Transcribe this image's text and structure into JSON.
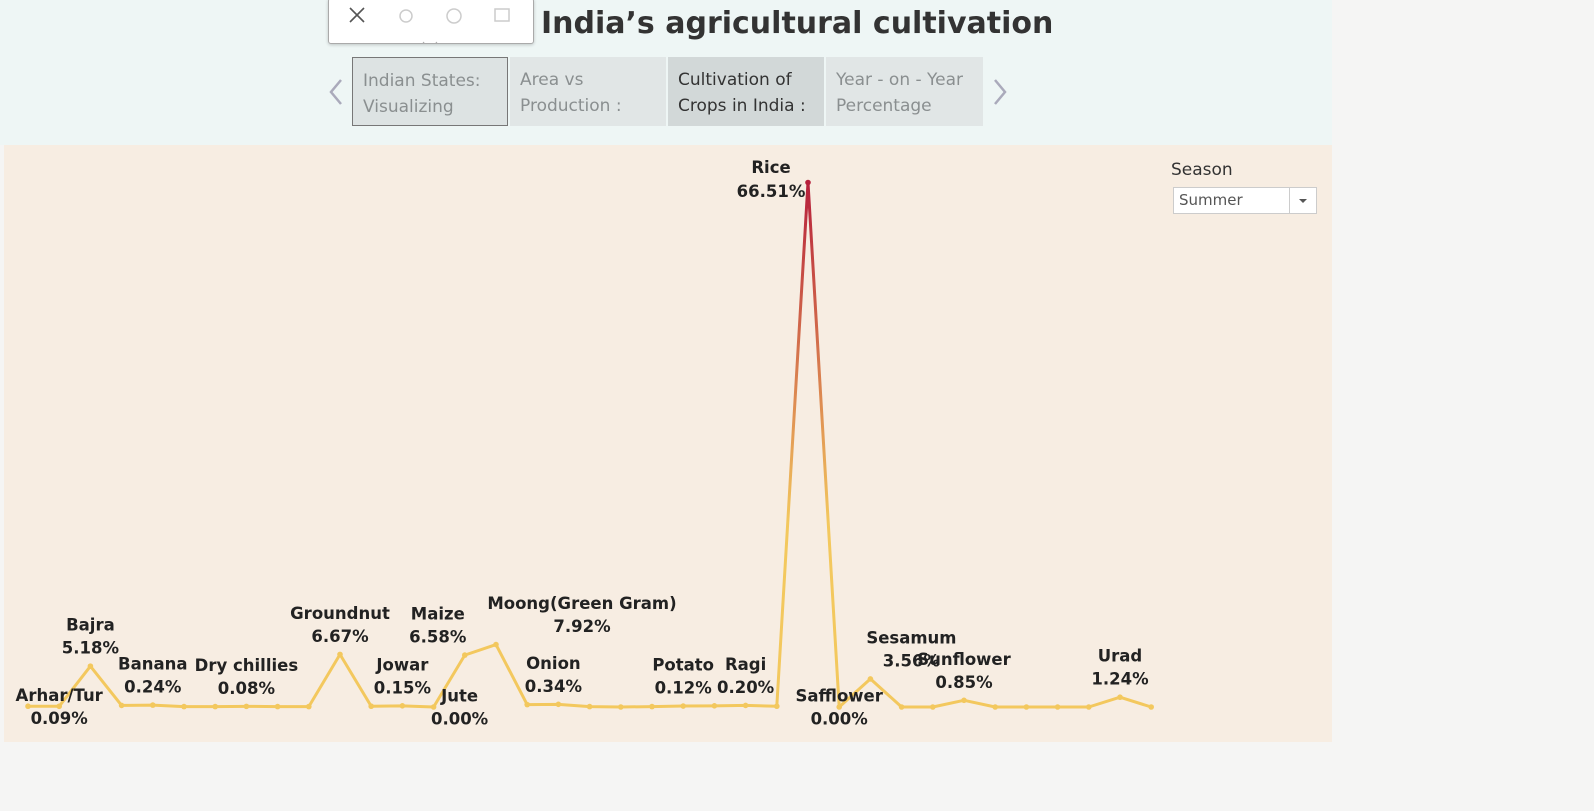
{
  "ui": {
    "title": "India’s agricultural cultivation",
    "tabs": [
      "Indian States: Visualizing",
      "Area vs Production :",
      "Cultivation of Crops in India :",
      "Year - on - Year Percentage"
    ],
    "filter": {
      "label": "Season",
      "value": "Summer"
    }
  },
  "chart_data": {
    "type": "line",
    "categories": [
      null,
      "Arhar/Tur",
      "Bajra",
      null,
      "Banana",
      null,
      null,
      "Dry chillies",
      null,
      null,
      "Groundnut",
      null,
      "Jowar",
      "Jute",
      "Maize",
      "Moong(Green Gram)",
      null,
      "Onion",
      null,
      null,
      null,
      "Potato",
      null,
      "Ragi",
      null,
      "Rice",
      "Safflower",
      "Sesamum",
      null,
      null,
      "Sunflower",
      null,
      null,
      null,
      null,
      "Urad",
      null
    ],
    "values": [
      0.1,
      0.09,
      5.18,
      0.2,
      0.24,
      0.05,
      0.05,
      0.08,
      0.05,
      0.05,
      6.67,
      0.1,
      0.15,
      0.0,
      6.58,
      7.92,
      0.3,
      0.34,
      0.05,
      0.0,
      0.05,
      0.12,
      0.15,
      0.2,
      0.1,
      66.51,
      0.0,
      3.56,
      0.0,
      0.0,
      0.85,
      0.0,
      0.0,
      0.0,
      0.0,
      1.24,
      0.0
    ],
    "value_labels": [
      null,
      "0.09%",
      "5.18%",
      null,
      "0.24%",
      null,
      null,
      "0.08%",
      null,
      null,
      "6.67%",
      null,
      "0.15%",
      "0.00%",
      "6.58%",
      "7.92%",
      null,
      "0.34%",
      null,
      null,
      null,
      "0.12%",
      null,
      "0.20%",
      null,
      "66.51%",
      "0.00%",
      "3.56%",
      null,
      null,
      "0.85%",
      null,
      null,
      null,
      null,
      "1.24%",
      null
    ],
    "ylim": [
      0,
      70
    ],
    "color_low": "#f3c85e",
    "color_high": "#b61f3b"
  }
}
